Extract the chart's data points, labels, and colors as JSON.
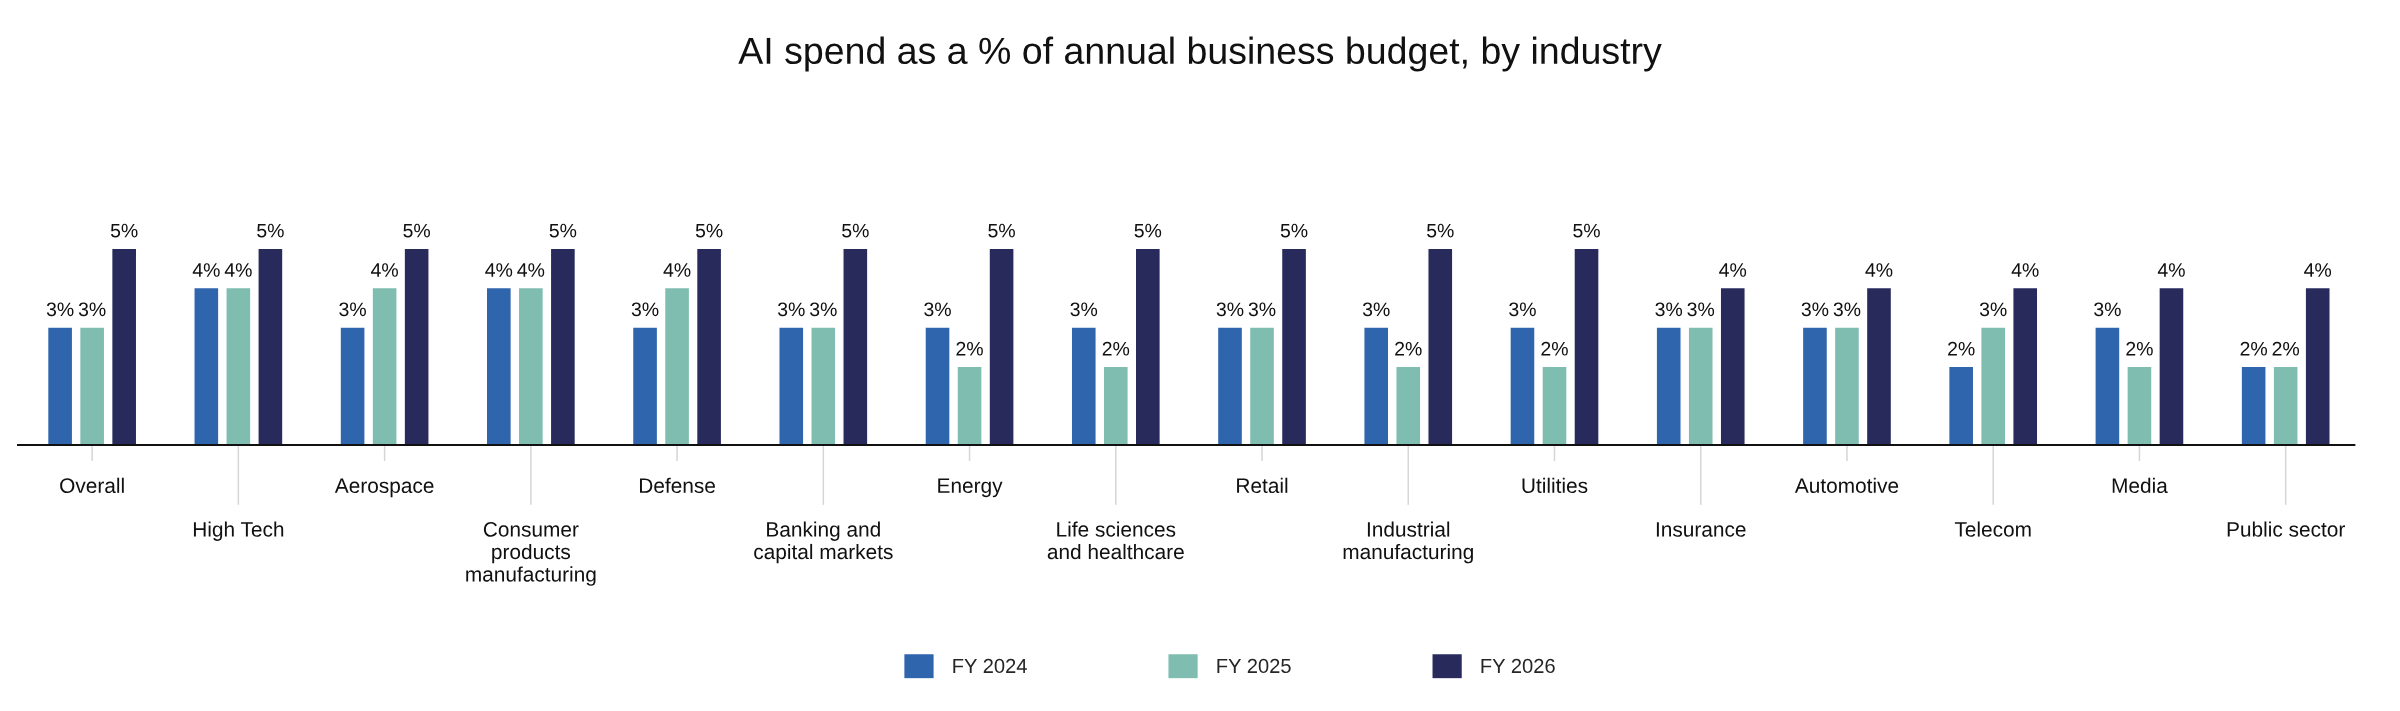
{
  "chart_data": {
    "type": "bar",
    "title": "AI spend as a % of annual business budget, by industry",
    "categories": [
      "Overall",
      "High Tech",
      "Aerospace",
      "Consumer\nproducts\nmanufacturing",
      "Defense",
      "Banking and\ncapital markets",
      "Energy",
      "Life sciences\nand healthcare",
      "Retail",
      "Industrial\nmanufacturing",
      "Utilities",
      "Insurance",
      "Automotive",
      "Telecom",
      "Media",
      "Public sector"
    ],
    "series": [
      {
        "name": "FY 2024",
        "color": "#2f65ac",
        "values": [
          3,
          4,
          3,
          4,
          3,
          3,
          3,
          3,
          3,
          3,
          3,
          3,
          3,
          2,
          3,
          2
        ],
        "value_labels": [
          "3%",
          "4%",
          "3%",
          "4%",
          "3%",
          "3%",
          "3%",
          "3%",
          "3%",
          "3%",
          "3%",
          "3%",
          "3%",
          "2%",
          "3%",
          "2%"
        ]
      },
      {
        "name": "FY 2025",
        "color": "#7fbdb0",
        "values": [
          3,
          4,
          4,
          4,
          4,
          3,
          2,
          2,
          3,
          2,
          2,
          3,
          3,
          3,
          2,
          2
        ],
        "value_labels": [
          "3%",
          "4%",
          "4%",
          "4%",
          "4%",
          "3%",
          "2%",
          "2%",
          "3%",
          "2%",
          "2%",
          "3%",
          "3%",
          "3%",
          "2%",
          "2%"
        ]
      },
      {
        "name": "FY 2026",
        "color": "#272a5b",
        "values": [
          5,
          5,
          5,
          5,
          5,
          5,
          5,
          5,
          5,
          5,
          5,
          4,
          4,
          4,
          4,
          4
        ],
        "value_labels": [
          "5%",
          "5%",
          "5%",
          "5%",
          "5%",
          "5%",
          "5%",
          "5%",
          "5%",
          "5%",
          "5%",
          "4%",
          "4%",
          "4%",
          "4%",
          "4%"
        ]
      }
    ],
    "tick_labels": "x",
    "grid": false,
    "legend": "bottom"
  }
}
